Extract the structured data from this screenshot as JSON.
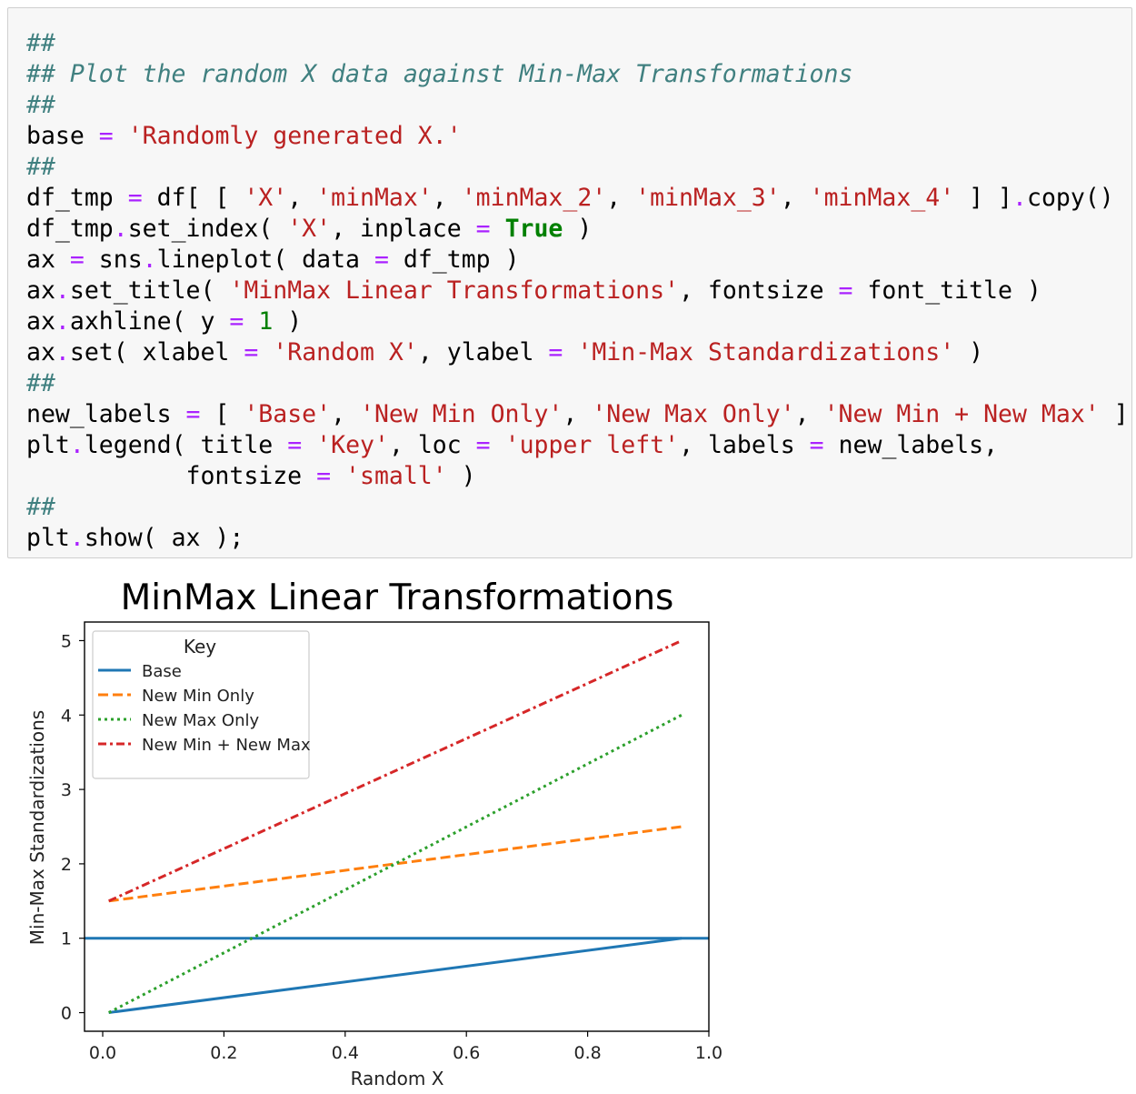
{
  "code_cell": {
    "lines": [
      [
        {
          "t": "##",
          "c": "cm"
        }
      ],
      [
        {
          "t": "## Plot the random X data against Min-Max Transformations",
          "c": "cm"
        }
      ],
      [
        {
          "t": "##",
          "c": "cm"
        }
      ],
      [
        {
          "t": "base "
        },
        {
          "t": "=",
          "c": "op"
        },
        {
          "t": " "
        },
        {
          "t": "'Randomly generated X.'",
          "c": "st"
        }
      ],
      [
        {
          "t": "##",
          "c": "cm"
        }
      ],
      [
        {
          "t": "df_tmp "
        },
        {
          "t": "=",
          "c": "op"
        },
        {
          "t": " df[ [ "
        },
        {
          "t": "'X'",
          "c": "st"
        },
        {
          "t": ", "
        },
        {
          "t": "'minMax'",
          "c": "st"
        },
        {
          "t": ", "
        },
        {
          "t": "'minMax_2'",
          "c": "st"
        },
        {
          "t": ", "
        },
        {
          "t": "'minMax_3'",
          "c": "st"
        },
        {
          "t": ", "
        },
        {
          "t": "'minMax_4'",
          "c": "st"
        },
        {
          "t": " ] ]"
        },
        {
          "t": ".",
          "c": "op"
        },
        {
          "t": "copy()"
        }
      ],
      [
        {
          "t": "df_tmp"
        },
        {
          "t": ".",
          "c": "op"
        },
        {
          "t": "set_index( "
        },
        {
          "t": "'X'",
          "c": "st"
        },
        {
          "t": ", inplace "
        },
        {
          "t": "=",
          "c": "op"
        },
        {
          "t": " "
        },
        {
          "t": "True",
          "c": "kw"
        },
        {
          "t": " )"
        }
      ],
      [
        {
          "t": "ax "
        },
        {
          "t": "=",
          "c": "op"
        },
        {
          "t": " sns"
        },
        {
          "t": ".",
          "c": "op"
        },
        {
          "t": "lineplot( data "
        },
        {
          "t": "=",
          "c": "op"
        },
        {
          "t": " df_tmp )"
        }
      ],
      [
        {
          "t": "ax"
        },
        {
          "t": ".",
          "c": "op"
        },
        {
          "t": "set_title( "
        },
        {
          "t": "'MinMax Linear Transformations'",
          "c": "st"
        },
        {
          "t": ", fontsize "
        },
        {
          "t": "=",
          "c": "op"
        },
        {
          "t": " font_title )"
        }
      ],
      [
        {
          "t": "ax"
        },
        {
          "t": ".",
          "c": "op"
        },
        {
          "t": "axhline( y "
        },
        {
          "t": "=",
          "c": "op"
        },
        {
          "t": " "
        },
        {
          "t": "1",
          "c": "nu"
        },
        {
          "t": " )"
        }
      ],
      [
        {
          "t": "ax"
        },
        {
          "t": ".",
          "c": "op"
        },
        {
          "t": "set( xlabel "
        },
        {
          "t": "=",
          "c": "op"
        },
        {
          "t": " "
        },
        {
          "t": "'Random X'",
          "c": "st"
        },
        {
          "t": ", ylabel "
        },
        {
          "t": "=",
          "c": "op"
        },
        {
          "t": " "
        },
        {
          "t": "'Min-Max Standardizations'",
          "c": "st"
        },
        {
          "t": " )"
        }
      ],
      [
        {
          "t": "##",
          "c": "cm"
        }
      ],
      [
        {
          "t": "new_labels "
        },
        {
          "t": "=",
          "c": "op"
        },
        {
          "t": " [ "
        },
        {
          "t": "'Base'",
          "c": "st"
        },
        {
          "t": ", "
        },
        {
          "t": "'New Min Only'",
          "c": "st"
        },
        {
          "t": ", "
        },
        {
          "t": "'New Max Only'",
          "c": "st"
        },
        {
          "t": ", "
        },
        {
          "t": "'New Min + New Max'",
          "c": "st"
        },
        {
          "t": " ]"
        }
      ],
      [
        {
          "t": "plt"
        },
        {
          "t": ".",
          "c": "op"
        },
        {
          "t": "legend( title "
        },
        {
          "t": "=",
          "c": "op"
        },
        {
          "t": " "
        },
        {
          "t": "'Key'",
          "c": "st"
        },
        {
          "t": ", loc "
        },
        {
          "t": "=",
          "c": "op"
        },
        {
          "t": " "
        },
        {
          "t": "'upper left'",
          "c": "st"
        },
        {
          "t": ", labels "
        },
        {
          "t": "=",
          "c": "op"
        },
        {
          "t": " new_labels,"
        }
      ],
      [
        {
          "t": "           fontsize "
        },
        {
          "t": "=",
          "c": "op"
        },
        {
          "t": " "
        },
        {
          "t": "'small'",
          "c": "st"
        },
        {
          "t": " )"
        }
      ],
      [
        {
          "t": "##",
          "c": "cm"
        }
      ],
      [
        {
          "t": "plt"
        },
        {
          "t": ".",
          "c": "op"
        },
        {
          "t": "show( ax );"
        }
      ]
    ]
  },
  "chart_data": {
    "type": "line",
    "title": "MinMax Linear Transformations",
    "xlabel": "Random X",
    "ylabel": "Min-Max Standardizations",
    "xlim": [
      -0.03,
      1.0
    ],
    "ylim": [
      -0.25,
      5.25
    ],
    "xticks": [
      0.0,
      0.2,
      0.4,
      0.6,
      0.8,
      1.0
    ],
    "xtick_labels": [
      "0.0",
      "0.2",
      "0.4",
      "0.6",
      "0.8",
      "1.0"
    ],
    "yticks": [
      0,
      1,
      2,
      3,
      4,
      5
    ],
    "ytick_labels": [
      "0",
      "1",
      "2",
      "3",
      "4",
      "5"
    ],
    "grid": false,
    "legend": {
      "title": "Key",
      "placement": "upper-left"
    },
    "series": [
      {
        "name": "Base",
        "x": [
          0.01,
          0.955
        ],
        "y": [
          0.0,
          1.0
        ],
        "color": "#1f77b4",
        "style": "solid"
      },
      {
        "name": "New Min Only",
        "x": [
          0.01,
          0.955
        ],
        "y": [
          1.5,
          2.5
        ],
        "color": "#ff7f0e",
        "style": "dashed"
      },
      {
        "name": "New Max Only",
        "x": [
          0.01,
          0.955
        ],
        "y": [
          0.0,
          4.0
        ],
        "color": "#2ca02c",
        "style": "dotted"
      },
      {
        "name": "New Min + New Max",
        "x": [
          0.01,
          0.955
        ],
        "y": [
          1.5,
          5.0
        ],
        "color": "#d62728",
        "style": "dashdot"
      }
    ],
    "hlines": [
      {
        "y": 1,
        "color": "#1f77b4"
      }
    ]
  }
}
